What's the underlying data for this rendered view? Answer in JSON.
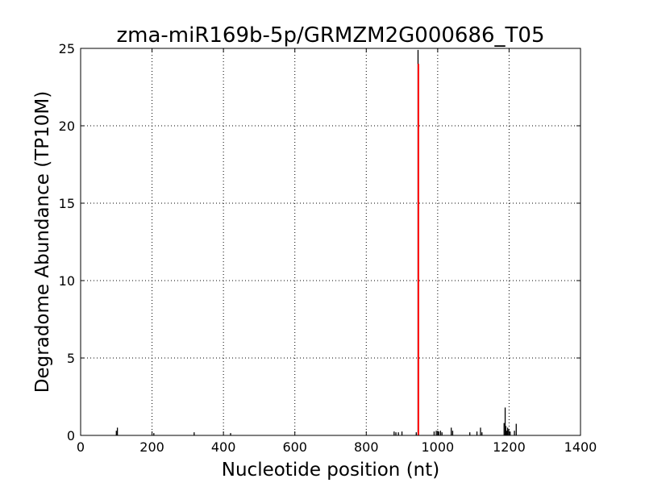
{
  "chart_data": {
    "type": "bar",
    "title": "zma-miR169b-5p/GRMZM2G000686_T05",
    "xlabel": "Nucleotide position (nt)",
    "ylabel": "Degradome Abundance (TP10M)",
    "xlim": [
      0,
      1400
    ],
    "ylim": [
      0,
      25
    ],
    "xticks": [
      0,
      200,
      400,
      600,
      800,
      1000,
      1200,
      1400
    ],
    "yticks": [
      0,
      5,
      10,
      15,
      20,
      25
    ],
    "grid": true,
    "colors": {
      "background": "#ffffff",
      "axes": "#000000",
      "bars": "#000000",
      "highlight": "#ff0000",
      "grid": "#000000"
    },
    "series": [
      {
        "values": [
          [
            100,
            0.3
          ],
          [
            103,
            0.5
          ],
          [
            205,
            0.15
          ],
          [
            318,
            0.2
          ],
          [
            420,
            0.15
          ],
          [
            878,
            0.25
          ],
          [
            883,
            0.2
          ],
          [
            890,
            0.2
          ],
          [
            900,
            0.25
          ],
          [
            940,
            0.2
          ],
          [
            945,
            24.9
          ],
          [
            990,
            0.25
          ],
          [
            996,
            0.3
          ],
          [
            1000,
            0.3
          ],
          [
            1003,
            0.25
          ],
          [
            1008,
            0.3
          ],
          [
            1012,
            0.2
          ],
          [
            1038,
            0.5
          ],
          [
            1042,
            0.3
          ],
          [
            1090,
            0.2
          ],
          [
            1110,
            0.25
          ],
          [
            1120,
            0.5
          ],
          [
            1124,
            0.2
          ],
          [
            1186,
            0.8
          ],
          [
            1189,
            1.8
          ],
          [
            1191,
            0.6
          ],
          [
            1193,
            0.3
          ],
          [
            1196,
            0.5
          ],
          [
            1199,
            0.4
          ],
          [
            1203,
            0.25
          ],
          [
            1215,
            0.3
          ],
          [
            1220,
            0.75
          ]
        ]
      },
      {
        "values": [
          [
            946,
            24.0
          ]
        ]
      }
    ]
  }
}
